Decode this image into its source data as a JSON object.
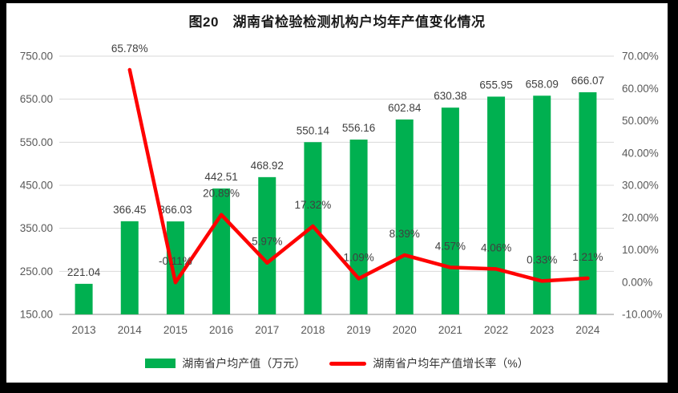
{
  "figure": {
    "title": "图20　湖南省检验检测机构户均年产值变化情况"
  },
  "chart_data": {
    "type": "bar",
    "subtype": "bar-line-combo",
    "title": "图20　湖南省检验检测机构户均年产值变化情况",
    "categories": [
      "2013",
      "2014",
      "2015",
      "2016",
      "2017",
      "2018",
      "2019",
      "2020",
      "2021",
      "2022",
      "2023",
      "2024"
    ],
    "series": [
      {
        "name": "湖南省户均产值（万元）",
        "type": "bar",
        "axis": "left",
        "color": "#00B050",
        "values": [
          221.04,
          366.45,
          366.03,
          442.51,
          468.92,
          550.14,
          556.16,
          602.84,
          630.38,
          655.95,
          658.09,
          666.07
        ]
      },
      {
        "name": "湖南省户均年产值增长率（%）",
        "type": "line",
        "axis": "right",
        "color": "#FF0000",
        "values": [
          null,
          65.78,
          -0.11,
          20.89,
          5.97,
          17.32,
          1.09,
          8.39,
          4.57,
          4.06,
          0.33,
          1.21
        ]
      }
    ],
    "left_axis": {
      "min": 150,
      "max": 750,
      "step": 100,
      "tick_labels": [
        "750.00",
        "650.00",
        "550.00",
        "450.00",
        "350.00",
        "250.00",
        "150.00"
      ]
    },
    "right_axis": {
      "min": -10,
      "max": 70,
      "step": 10,
      "tick_labels": [
        "70.00%",
        "60.00%",
        "50.00%",
        "40.00%",
        "30.00%",
        "20.00%",
        "10.00%",
        "0.00%",
        "-10.00%"
      ]
    },
    "grid": "horizontal",
    "gridline_color": "#D9D9D9",
    "baseline_color": "#C6C6C6",
    "tick_color": "#595959",
    "data_label_color": "#404040",
    "legend_position": "bottom"
  },
  "legend": {
    "items": [
      {
        "label": "湖南省户均产值（万元）",
        "swatch": "bar",
        "color": "#00B050"
      },
      {
        "label": "湖南省户均年产值增长率（%）",
        "swatch": "line",
        "color": "#FF0000"
      }
    ]
  }
}
